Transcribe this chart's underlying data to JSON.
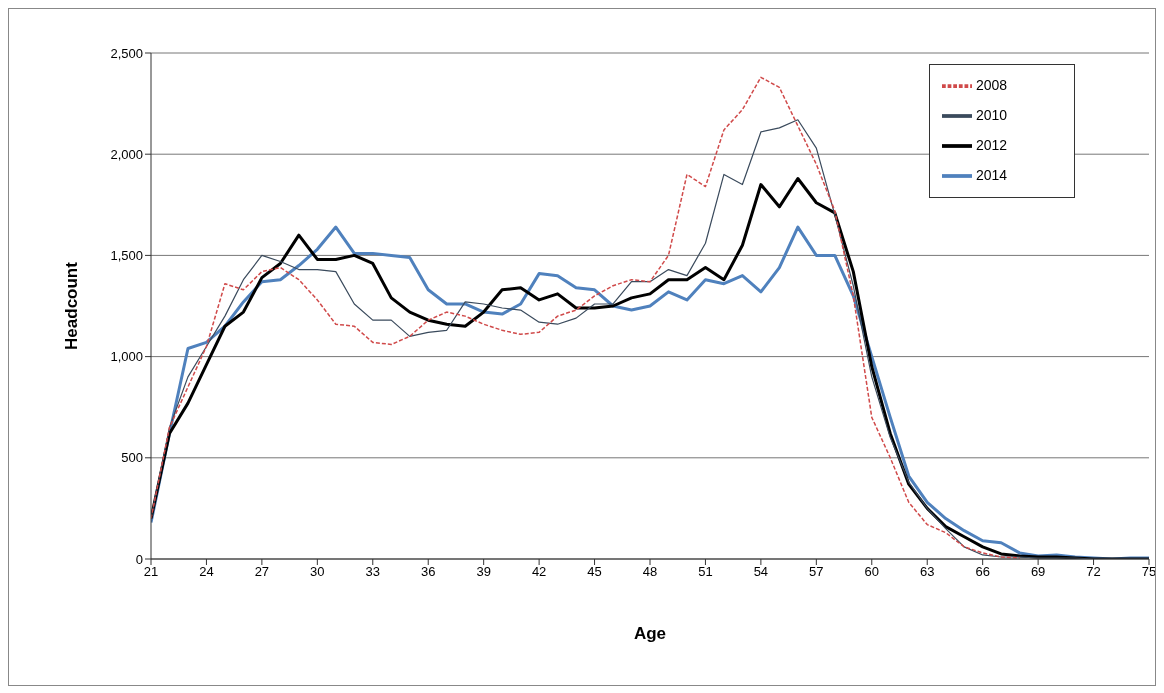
{
  "chart_data": {
    "type": "line",
    "xlabel": "Age",
    "ylabel": "Headcount",
    "x": [
      21,
      22,
      23,
      24,
      25,
      26,
      27,
      28,
      29,
      30,
      31,
      32,
      33,
      34,
      35,
      36,
      37,
      38,
      39,
      40,
      41,
      42,
      43,
      44,
      45,
      46,
      47,
      48,
      49,
      50,
      51,
      52,
      53,
      54,
      55,
      56,
      57,
      58,
      59,
      60,
      61,
      62,
      63,
      64,
      65,
      66,
      67,
      68,
      69,
      70,
      71,
      72,
      73,
      74,
      75
    ],
    "series": [
      {
        "name": "2008",
        "color": "#d04a4a",
        "line_style": "dashed",
        "values": [
          200,
          650,
          850,
          1050,
          1360,
          1330,
          1420,
          1440,
          1380,
          1280,
          1160,
          1150,
          1070,
          1060,
          1100,
          1180,
          1220,
          1200,
          1160,
          1130,
          1110,
          1120,
          1200,
          1230,
          1300,
          1350,
          1380,
          1370,
          1500,
          1900,
          1840,
          2120,
          2220,
          2380,
          2330,
          2140,
          1950,
          1720,
          1300,
          700,
          500,
          280,
          170,
          130,
          60,
          30,
          10,
          5,
          null,
          null,
          null,
          null,
          null,
          null,
          null
        ]
      },
      {
        "name": "2010",
        "color": "#3a4a5c",
        "line_style": "solid",
        "values": [
          200,
          650,
          900,
          1050,
          1200,
          1380,
          1500,
          1470,
          1430,
          1430,
          1420,
          1260,
          1180,
          1180,
          1100,
          1120,
          1130,
          1270,
          1260,
          1240,
          1230,
          1170,
          1160,
          1190,
          1260,
          1260,
          1370,
          1370,
          1430,
          1400,
          1560,
          1900,
          1850,
          2110,
          2130,
          2170,
          2030,
          1700,
          1350,
          900,
          600,
          380,
          250,
          150,
          60,
          20,
          10,
          10,
          5,
          5,
          5,
          0,
          0,
          0,
          0
        ]
      },
      {
        "name": "2012",
        "color": "#000000",
        "line_style": "solid",
        "values": [
          200,
          620,
          770,
          960,
          1150,
          1220,
          1390,
          1460,
          1600,
          1480,
          1480,
          1500,
          1460,
          1290,
          1220,
          1180,
          1160,
          1150,
          1220,
          1330,
          1340,
          1280,
          1310,
          1240,
          1240,
          1250,
          1290,
          1310,
          1380,
          1380,
          1440,
          1380,
          1550,
          1850,
          1740,
          1880,
          1760,
          1710,
          1420,
          950,
          620,
          370,
          250,
          160,
          110,
          60,
          25,
          15,
          10,
          10,
          5,
          0,
          0,
          0,
          0
        ]
      },
      {
        "name": "2014",
        "color": "#4f81bd",
        "line_style": "solid",
        "values": [
          180,
          620,
          1040,
          1070,
          1150,
          1270,
          1370,
          1380,
          1450,
          1530,
          1640,
          1510,
          1510,
          1500,
          1490,
          1330,
          1260,
          1260,
          1220,
          1210,
          1260,
          1410,
          1400,
          1340,
          1330,
          1250,
          1230,
          1250,
          1320,
          1280,
          1380,
          1360,
          1400,
          1320,
          1440,
          1640,
          1500,
          1500,
          1300,
          1000,
          700,
          410,
          280,
          200,
          140,
          90,
          80,
          30,
          15,
          20,
          10,
          5,
          0,
          5,
          5
        ]
      }
    ],
    "xlim": [
      21,
      75
    ],
    "xticks": [
      21,
      24,
      27,
      30,
      33,
      36,
      39,
      42,
      45,
      48,
      51,
      54,
      57,
      60,
      63,
      66,
      69,
      72,
      75
    ],
    "ylim": [
      0,
      2500
    ],
    "yticks": [
      {
        "value": 0,
        "label": "0"
      },
      {
        "value": 500,
        "label": "500"
      },
      {
        "value": 1000,
        "label": "1,000"
      },
      {
        "value": 1500,
        "label": "1,500"
      },
      {
        "value": 2000,
        "label": "2,000"
      },
      {
        "value": 2500,
        "label": "2,500"
      }
    ],
    "grid": "y",
    "legend": "top right",
    "marker": "none"
  }
}
